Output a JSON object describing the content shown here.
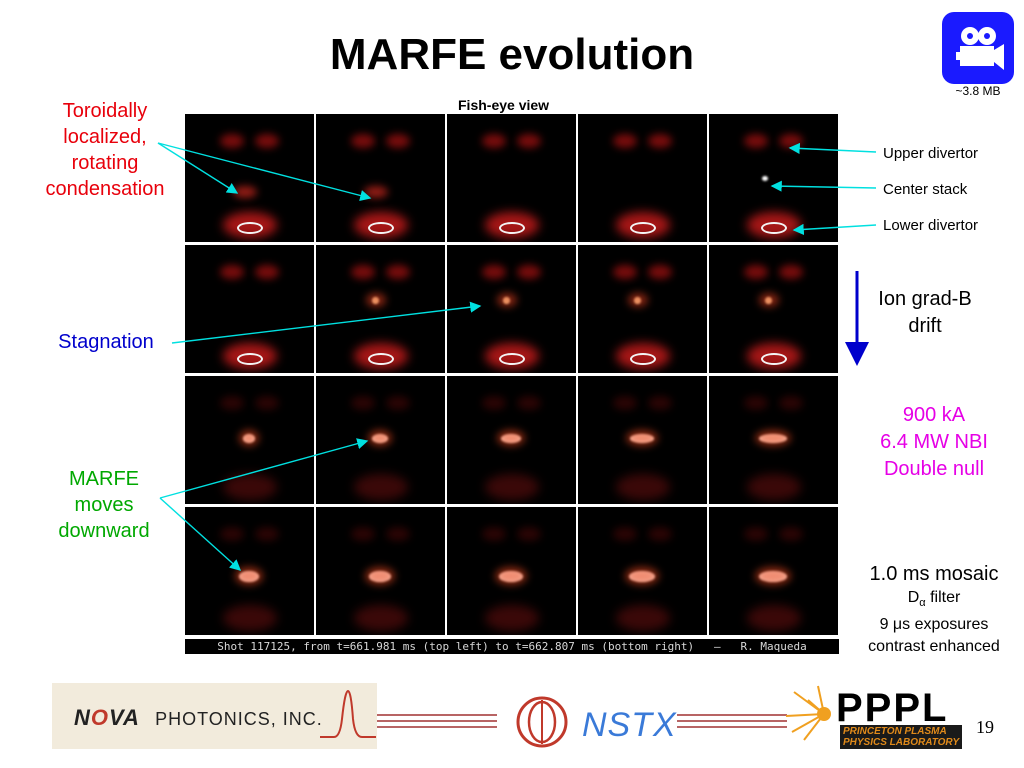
{
  "title": "MARFE evolution",
  "movie": {
    "size_label": "~3.8 MB",
    "icon": "movie-camera-icon"
  },
  "mosaic": {
    "view_label": "Fish-eye view",
    "caption": "Shot 117125, from t=661.981 ms (top left) to t=662.807 ms (bottom right)   –   R. Maqueda"
  },
  "left_labels": {
    "toroidal": "Toroidally localized, rotating condensation",
    "toroidal_lines": [
      "Toroidally",
      "localized,",
      "rotating",
      "condensation"
    ],
    "stagnation": "Stagnation",
    "marfe_lines": [
      "MARFE",
      "moves",
      "downward"
    ]
  },
  "right_labels": {
    "upper": "Upper divertor",
    "center": "Center stack",
    "lower": "Lower divertor",
    "drift_lines": [
      "Ion grad-B",
      "drift"
    ],
    "params_lines": [
      "900 kA",
      "6.4 MW NBI",
      "Double null"
    ],
    "mosaic_info": "1.0 ms mosaic",
    "filter_prefix": "D",
    "filter_sub": "α",
    "filter_suffix": " filter",
    "exposure_prefix": "9 ",
    "exposure_mu": "μ",
    "exposure_suffix": "s exposures",
    "contrast": "contrast enhanced"
  },
  "colors": {
    "red_label": "#e8000b",
    "blue_label": "#0000cc",
    "green_label": "#00a800",
    "magenta_label": "#e600e6",
    "arrow": "#00e0e0",
    "movie_button": "#1a1aff"
  },
  "footer": {
    "nova_first": "N",
    "nova_o": "O",
    "nova_rest": "VA",
    "photonics": "PHOTONICS, INC.",
    "nstx": "NSTX",
    "pppl": "PPPL",
    "pppl_sub1": "PRINCETON PLASMA",
    "pppl_sub2": "PHYSICS LABORATORY",
    "page": "19"
  }
}
